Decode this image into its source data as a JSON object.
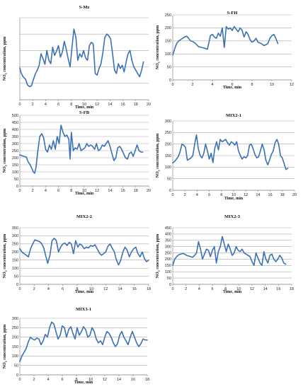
{
  "colors": {
    "series": "#3c70b4",
    "grid": "#a9a9a9",
    "text": "#111111"
  },
  "chart_data": [
    {
      "type": "line",
      "title": "S-Mz",
      "xlabel": "Time, min",
      "ylabel": "NOx concentration, ppm",
      "xlim": [
        0,
        20
      ],
      "xticks": [
        0,
        2,
        4,
        6,
        8,
        10,
        12,
        14,
        16,
        18,
        20
      ],
      "ylim": [
        0,
        250
      ],
      "yticks": [],
      "grid": true,
      "legend": "none",
      "series": [
        {
          "x": [
            0,
            0.2,
            0.5,
            0.9,
            1.2,
            1.5,
            1.8,
            2.0,
            2.4,
            2.7,
            3.0,
            3.3,
            3.6,
            3.9,
            4.2,
            4.5,
            4.8,
            5.1,
            5.4,
            5.7,
            6.0,
            6.3,
            6.6,
            6.9,
            7.2,
            7.5,
            7.8,
            8.1,
            8.4,
            8.7,
            9.0,
            9.3,
            9.6,
            9.9,
            10.2,
            10.5,
            10.8,
            11.1,
            11.4,
            11.7,
            12.0,
            12.3,
            12.6,
            12.9,
            13.2,
            13.5,
            13.8,
            14.1,
            14.4,
            14.7,
            15.0,
            15.3,
            15.6,
            15.9,
            16.2,
            16.5,
            16.8,
            17.1,
            17.4,
            17.7,
            18.0,
            18.3,
            18.6,
            18.9,
            19.2
          ],
          "y": [
            97,
            82,
            70,
            62,
            45,
            40,
            42,
            55,
            78,
            90,
            105,
            140,
            125,
            108,
            150,
            120,
            110,
            160,
            135,
            148,
            165,
            130,
            145,
            178,
            155,
            125,
            100,
            160,
            215,
            190,
            120,
            140,
            130,
            150,
            128,
            120,
            165,
            175,
            170,
            80,
            75,
            95,
            110,
            145,
            190,
            200,
            195,
            185,
            140,
            90,
            80,
            110,
            95,
            105,
            85,
            115,
            140,
            150,
            120,
            100,
            90,
            80,
            70,
            90,
            115
          ]
        }
      ]
    },
    {
      "type": "line",
      "title": "S-FH",
      "xlabel": "Time, min",
      "ylabel": "NOx concentration, ppm",
      "xlim": [
        0,
        12
      ],
      "xticks": [
        0,
        2,
        4,
        6,
        8,
        10,
        12
      ],
      "ylim": [
        0,
        250
      ],
      "yticks": [
        0,
        50,
        100,
        150,
        200,
        250
      ],
      "grid": true,
      "legend": "none",
      "series": [
        {
          "x": [
            0,
            0.2,
            0.4,
            0.6,
            0.8,
            1.0,
            1.2,
            1.4,
            1.6,
            1.8,
            2.0,
            2.3,
            2.6,
            2.9,
            3.2,
            3.5,
            3.8,
            4.0,
            4.2,
            4.4,
            4.6,
            4.8,
            5.0,
            5.2,
            5.4,
            5.6,
            5.8,
            6.0,
            6.2,
            6.4,
            6.6,
            6.8,
            7.0,
            7.2,
            7.4,
            7.6,
            7.8,
            8.0,
            8.2,
            8.4,
            8.6,
            8.8,
            9.0,
            9.2,
            9.4,
            9.6,
            9.8,
            10.0,
            10.2,
            10.4,
            10.6
          ],
          "y": [
            95,
            120,
            140,
            150,
            155,
            160,
            165,
            168,
            160,
            150,
            148,
            140,
            128,
            125,
            122,
            118,
            170,
            175,
            165,
            160,
            180,
            168,
            200,
            125,
            205,
            195,
            200,
            190,
            205,
            195,
            185,
            200,
            190,
            165,
            185,
            175,
            155,
            145,
            150,
            160,
            145,
            142,
            138,
            132,
            135,
            140,
            160,
            170,
            175,
            160,
            140
          ]
        }
      ]
    },
    {
      "type": "line",
      "title": "S-FB",
      "xlabel": "Time, min",
      "ylabel": "NOx concentration, ppm",
      "xlim": [
        0,
        20
      ],
      "xticks": [
        0,
        2,
        4,
        6,
        8,
        10,
        12,
        14,
        16,
        18,
        20
      ],
      "ylim": [
        0,
        500
      ],
      "yticks": [
        0,
        50,
        100,
        150,
        200,
        250,
        300,
        350,
        400,
        450,
        500
      ],
      "grid": true,
      "legend": "none",
      "series": [
        {
          "x": [
            0,
            0.3,
            0.6,
            1.0,
            1.3,
            1.6,
            1.9,
            2.1,
            2.3,
            2.5,
            2.8,
            3.1,
            3.4,
            3.7,
            4.0,
            4.3,
            4.6,
            4.9,
            5.2,
            5.5,
            5.8,
            6.1,
            6.4,
            6.7,
            7.0,
            7.3,
            7.6,
            7.8,
            8.0,
            8.3,
            8.6,
            8.9,
            9.2,
            9.5,
            9.8,
            10.1,
            10.4,
            10.7,
            11.0,
            11.3,
            11.6,
            11.9,
            12.2,
            12.5,
            12.8,
            13.1,
            13.4,
            13.7,
            14.0,
            14.3,
            14.6,
            14.9,
            15.2,
            15.5,
            15.8,
            16.1,
            16.4,
            16.7,
            17.0,
            17.3,
            17.6,
            17.9,
            18.2,
            18.5,
            18.8,
            19.1
          ],
          "y": [
            220,
            215,
            210,
            205,
            170,
            150,
            120,
            100,
            90,
            130,
            250,
            350,
            370,
            340,
            260,
            240,
            290,
            260,
            320,
            260,
            350,
            300,
            430,
            380,
            350,
            360,
            330,
            190,
            380,
            250,
            270,
            260,
            300,
            250,
            260,
            270,
            300,
            280,
            290,
            280,
            260,
            300,
            250,
            260,
            290,
            280,
            300,
            320,
            280,
            230,
            180,
            200,
            270,
            280,
            260,
            230,
            200,
            190,
            230,
            240,
            210,
            250,
            290,
            250,
            240,
            240
          ]
        }
      ]
    },
    {
      "type": "line",
      "title": "MIX2-1",
      "xlabel": "Time, min",
      "ylabel": "NOx concentration, ppm",
      "xlim": [
        0,
        20
      ],
      "xticks": [
        0,
        2,
        4,
        6,
        8,
        10,
        12,
        14,
        16,
        18,
        20
      ],
      "ylim": [
        0,
        300
      ],
      "yticks": [
        0,
        50,
        100,
        150,
        200,
        250,
        300
      ],
      "grid": true,
      "legend": "none",
      "series": [
        {
          "x": [
            0,
            0.3,
            0.6,
            0.9,
            1.2,
            1.5,
            1.8,
            2.1,
            2.4,
            2.7,
            3.0,
            3.3,
            3.6,
            3.9,
            4.2,
            4.5,
            4.8,
            5.1,
            5.4,
            5.7,
            6.0,
            6.3,
            6.6,
            6.9,
            7.2,
            7.5,
            7.8,
            8.1,
            8.4,
            8.7,
            9.0,
            9.3,
            9.6,
            9.9,
            10.2,
            10.5,
            10.8,
            11.1,
            11.4,
            11.7,
            12.0,
            12.3,
            12.6,
            12.9,
            13.2,
            13.5,
            13.8,
            14.1,
            14.4,
            14.7,
            15.0,
            15.3,
            15.6,
            15.9,
            16.2,
            16.5,
            16.8,
            17.1,
            17.4,
            17.7,
            18.0,
            18.3,
            18.6,
            18.9
          ],
          "y": [
            118,
            125,
            135,
            145,
            165,
            200,
            195,
            185,
            130,
            135,
            140,
            150,
            200,
            240,
            180,
            150,
            140,
            160,
            200,
            170,
            135,
            160,
            120,
            180,
            210,
            175,
            220,
            210,
            215,
            220,
            205,
            195,
            210,
            205,
            195,
            210,
            170,
            150,
            135,
            145,
            140,
            150,
            195,
            200,
            180,
            155,
            140,
            145,
            170,
            200,
            175,
            130,
            110,
            130,
            155,
            170,
            205,
            220,
            200,
            150,
            140,
            115,
            90,
            95
          ]
        }
      ]
    },
    {
      "type": "line",
      "title": "MIX2-2",
      "xlabel": "Time, min",
      "ylabel": "NOx concentration, ppm",
      "xlim": [
        0,
        18
      ],
      "xticks": [
        0,
        2,
        4,
        6,
        8,
        10,
        12,
        14,
        16,
        18
      ],
      "ylim": [
        0,
        350
      ],
      "yticks": [
        0,
        50,
        100,
        150,
        200,
        250,
        300,
        350
      ],
      "grid": true,
      "legend": "none",
      "series": [
        {
          "x": [
            0,
            0.3,
            0.6,
            0.9,
            1.2,
            1.5,
            1.8,
            2.1,
            2.4,
            2.7,
            3.0,
            3.3,
            3.6,
            3.9,
            4.2,
            4.5,
            4.8,
            5.1,
            5.4,
            5.7,
            6.0,
            6.3,
            6.6,
            6.9,
            7.2,
            7.5,
            7.8,
            8.1,
            8.4,
            8.7,
            9.0,
            9.3,
            9.6,
            9.9,
            10.2,
            10.5,
            10.8,
            11.1,
            11.4,
            11.7,
            12.0,
            12.3,
            12.6,
            12.9,
            13.2,
            13.5,
            13.8,
            14.1,
            14.4,
            14.7,
            15.0,
            15.3,
            15.6,
            15.9,
            16.2,
            16.5,
            16.8,
            17.1,
            17.4,
            17.7,
            18.0
          ],
          "y": [
            220,
            200,
            190,
            180,
            170,
            220,
            250,
            275,
            270,
            265,
            255,
            230,
            180,
            130,
            180,
            270,
            285,
            270,
            200,
            230,
            250,
            255,
            240,
            260,
            250,
            190,
            270,
            230,
            250,
            240,
            220,
            230,
            225,
            240,
            235,
            245,
            220,
            195,
            180,
            190,
            200,
            235,
            250,
            225,
            200,
            150,
            120,
            150,
            200,
            230,
            210,
            170,
            200,
            220,
            230,
            190,
            170,
            200,
            160,
            140,
            150
          ]
        }
      ]
    },
    {
      "type": "line",
      "title": "MIX2-3",
      "xlabel": "Time, min",
      "ylabel": "NOx concentration, ppm",
      "xlim": [
        0,
        18
      ],
      "xticks": [
        0,
        2,
        4,
        6,
        8,
        10,
        12,
        14,
        16,
        18
      ],
      "ylim": [
        0,
        450
      ],
      "yticks": [
        0,
        50,
        100,
        150,
        200,
        250,
        300,
        350,
        400,
        450
      ],
      "grid": true,
      "legend": "none",
      "series": [
        {
          "x": [
            0,
            0.3,
            0.6,
            0.9,
            1.2,
            1.5,
            1.8,
            2.1,
            2.4,
            2.7,
            3.0,
            3.3,
            3.6,
            3.9,
            4.2,
            4.5,
            4.8,
            5.1,
            5.4,
            5.7,
            6.0,
            6.3,
            6.6,
            6.9,
            7.2,
            7.5,
            7.8,
            8.1,
            8.4,
            8.7,
            9.0,
            9.3,
            9.6,
            9.9,
            10.2,
            10.5,
            10.8,
            11.1,
            11.4,
            11.7,
            12.0,
            12.3,
            12.6,
            12.9,
            13.2,
            13.5,
            13.8,
            14.1,
            14.4,
            14.7,
            15.0,
            15.3,
            15.6,
            15.9,
            16.2,
            16.5,
            16.8,
            17.1
          ],
          "y": [
            150,
            200,
            220,
            235,
            240,
            245,
            240,
            230,
            225,
            220,
            215,
            230,
            250,
            340,
            280,
            200,
            240,
            280,
            270,
            220,
            270,
            300,
            170,
            260,
            300,
            380,
            320,
            260,
            320,
            280,
            230,
            250,
            300,
            270,
            260,
            280,
            250,
            240,
            230,
            220,
            180,
            150,
            250,
            210,
            170,
            150,
            260,
            200,
            170,
            230,
            240,
            200,
            180,
            200,
            230,
            210,
            170,
            160
          ]
        }
      ]
    },
    {
      "type": "line",
      "title": "MIX3-1",
      "xlabel": "Time, min",
      "ylabel": "NOx concentration, ppm",
      "xlim": [
        0,
        18
      ],
      "xticks": [
        0,
        2,
        4,
        6,
        8,
        10,
        12,
        14,
        16,
        18
      ],
      "ylim": [
        0,
        300
      ],
      "yticks": [
        0,
        50,
        100,
        150,
        200,
        250,
        300
      ],
      "grid": true,
      "legend": "none",
      "series": [
        {
          "x": [
            0,
            0.3,
            0.6,
            0.9,
            1.2,
            1.5,
            1.8,
            2.1,
            2.4,
            2.7,
            3.0,
            3.3,
            3.6,
            3.9,
            4.2,
            4.5,
            4.8,
            5.1,
            5.4,
            5.7,
            6.0,
            6.3,
            6.6,
            6.9,
            7.2,
            7.5,
            7.8,
            8.1,
            8.4,
            8.7,
            9.0,
            9.3,
            9.6,
            9.9,
            10.2,
            10.5,
            10.8,
            11.1,
            11.4,
            11.7,
            12.0,
            12.3,
            12.6,
            12.9,
            13.2,
            13.5,
            13.8,
            14.1,
            14.4,
            14.7,
            15.0,
            15.3,
            15.6,
            15.9,
            16.2,
            16.5,
            16.8,
            17.1,
            17.4,
            17.7,
            18.0
          ],
          "y": [
            70,
            100,
            120,
            140,
            175,
            200,
            190,
            185,
            195,
            190,
            160,
            180,
            215,
            200,
            250,
            280,
            270,
            230,
            190,
            210,
            260,
            250,
            200,
            240,
            255,
            220,
            190,
            250,
            210,
            230,
            255,
            240,
            200,
            210,
            250,
            230,
            190,
            170,
            180,
            160,
            200,
            230,
            220,
            200,
            170,
            150,
            165,
            210,
            230,
            200,
            180,
            160,
            200,
            230,
            200,
            170,
            150,
            165,
            190,
            185,
            185
          ]
        }
      ]
    }
  ]
}
